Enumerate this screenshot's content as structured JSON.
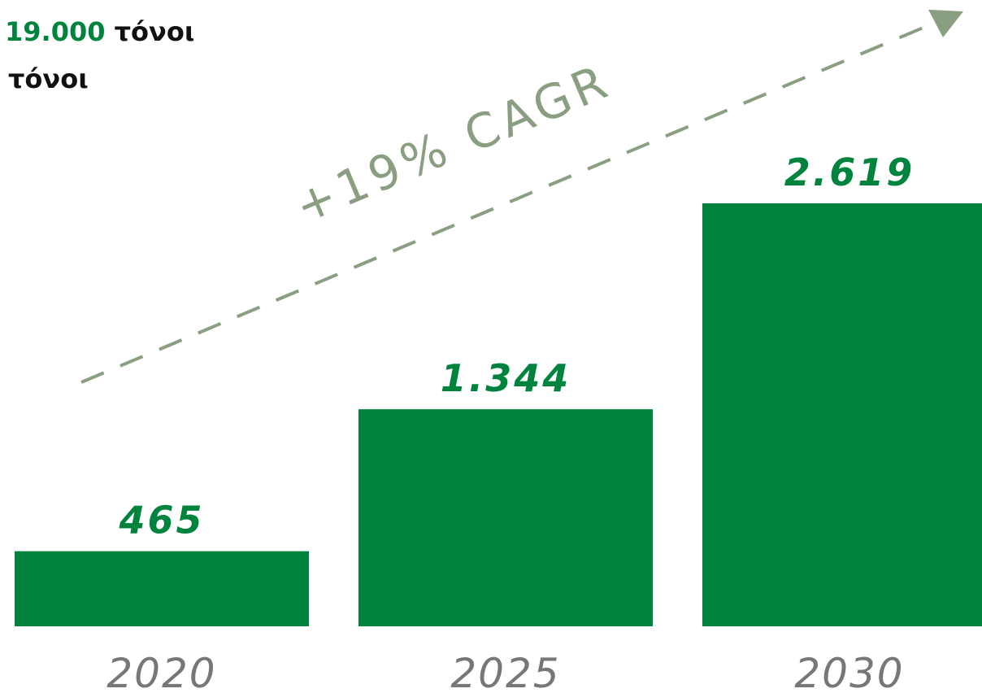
{
  "chart_data": {
    "type": "bar",
    "notes": [
      {
        "highlight": "19.000",
        "text": "τόνοι"
      },
      {
        "text": "τόνοι"
      }
    ],
    "trend_label": "+19% CAGR",
    "categories": [
      "2020",
      "2025",
      "2030"
    ],
    "values": [
      465,
      1344,
      2619
    ],
    "value_labels": [
      "465",
      "1.344",
      "2.619"
    ],
    "color": "#00843d",
    "trend_color": "#8a9e82"
  }
}
